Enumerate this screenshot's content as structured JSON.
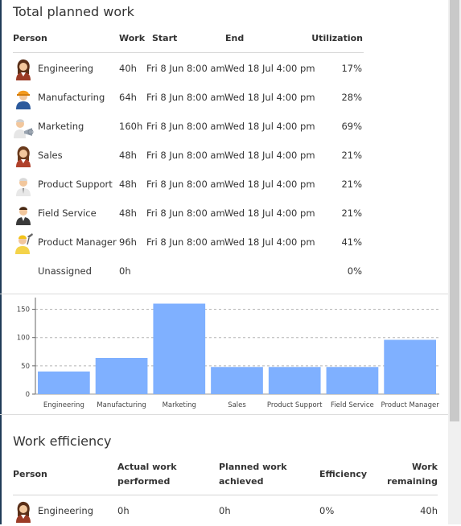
{
  "planned": {
    "title": "Total planned work",
    "headers": {
      "person": "Person",
      "work": "Work",
      "start": "Start",
      "end": "End",
      "utilization": "Utilization"
    },
    "rows": [
      {
        "name": "Engineering",
        "work": "40h",
        "start": "Fri 8 Jun 8:00 am",
        "end": "Wed 18 Jul 4:00 pm",
        "utilization": "17%",
        "icon": "woman-avatar-icon"
      },
      {
        "name": "Manufacturing",
        "work": "64h",
        "start": "Fri 8 Jun 8:00 am",
        "end": "Wed 18 Jul 4:00 pm",
        "utilization": "28%",
        "icon": "hard-hat-worker-icon"
      },
      {
        "name": "Marketing",
        "work": "160h",
        "start": "Fri 8 Jun 8:00 am",
        "end": "Wed 18 Jul 4:00 pm",
        "utilization": "69%",
        "icon": "megaphone-person-icon"
      },
      {
        "name": "Sales",
        "work": "48h",
        "start": "Fri 8 Jun 8:00 am",
        "end": "Wed 18 Jul 4:00 pm",
        "utilization": "21%",
        "icon": "woman-avatar-icon"
      },
      {
        "name": "Product Support",
        "work": "48h",
        "start": "Fri 8 Jun 8:00 am",
        "end": "Wed 18 Jul 4:00 pm",
        "utilization": "21%",
        "icon": "man-avatar-icon"
      },
      {
        "name": "Field Service",
        "work": "48h",
        "start": "Fri 8 Jun 8:00 am",
        "end": "Wed 18 Jul 4:00 pm",
        "utilization": "21%",
        "icon": "man-dark-suit-avatar-icon"
      },
      {
        "name": "Product Manager",
        "work": "96h",
        "start": "Fri 8 Jun 8:00 am",
        "end": "Wed 18 Jul 4:00 pm",
        "utilization": "41%",
        "icon": "manager-with-tool-icon"
      },
      {
        "name": "Unassigned",
        "work": "0h",
        "start": "",
        "end": "",
        "utilization": "0%",
        "icon": ""
      }
    ]
  },
  "chart_data": {
    "type": "bar",
    "categories": [
      "Engineering",
      "Manufacturing",
      "Marketing",
      "Sales",
      "Product Support",
      "Field Service",
      "Product Manager"
    ],
    "values": [
      40,
      64,
      160,
      48,
      48,
      48,
      96
    ],
    "yticks": [
      0,
      50,
      100,
      150
    ],
    "ylim": [
      0,
      165
    ],
    "grid": true,
    "bar_color": "#7fb0ff",
    "title": "",
    "xlabel": "",
    "ylabel": ""
  },
  "efficiency": {
    "title": "Work efficiency",
    "headers": {
      "person": "Person",
      "actual": "Actual work performed",
      "planned": "Planned work achieved",
      "efficiency": "Efficiency",
      "remaining": "Work remaining"
    },
    "rows": [
      {
        "name": "Engineering",
        "actual": "0h",
        "planned": "0h",
        "efficiency": "0%",
        "remaining": "40h",
        "icon": "woman-avatar-icon"
      }
    ]
  },
  "colors": {
    "accent": "#7fb0ff",
    "text": "#333333",
    "rule": "#d6d6d6"
  }
}
